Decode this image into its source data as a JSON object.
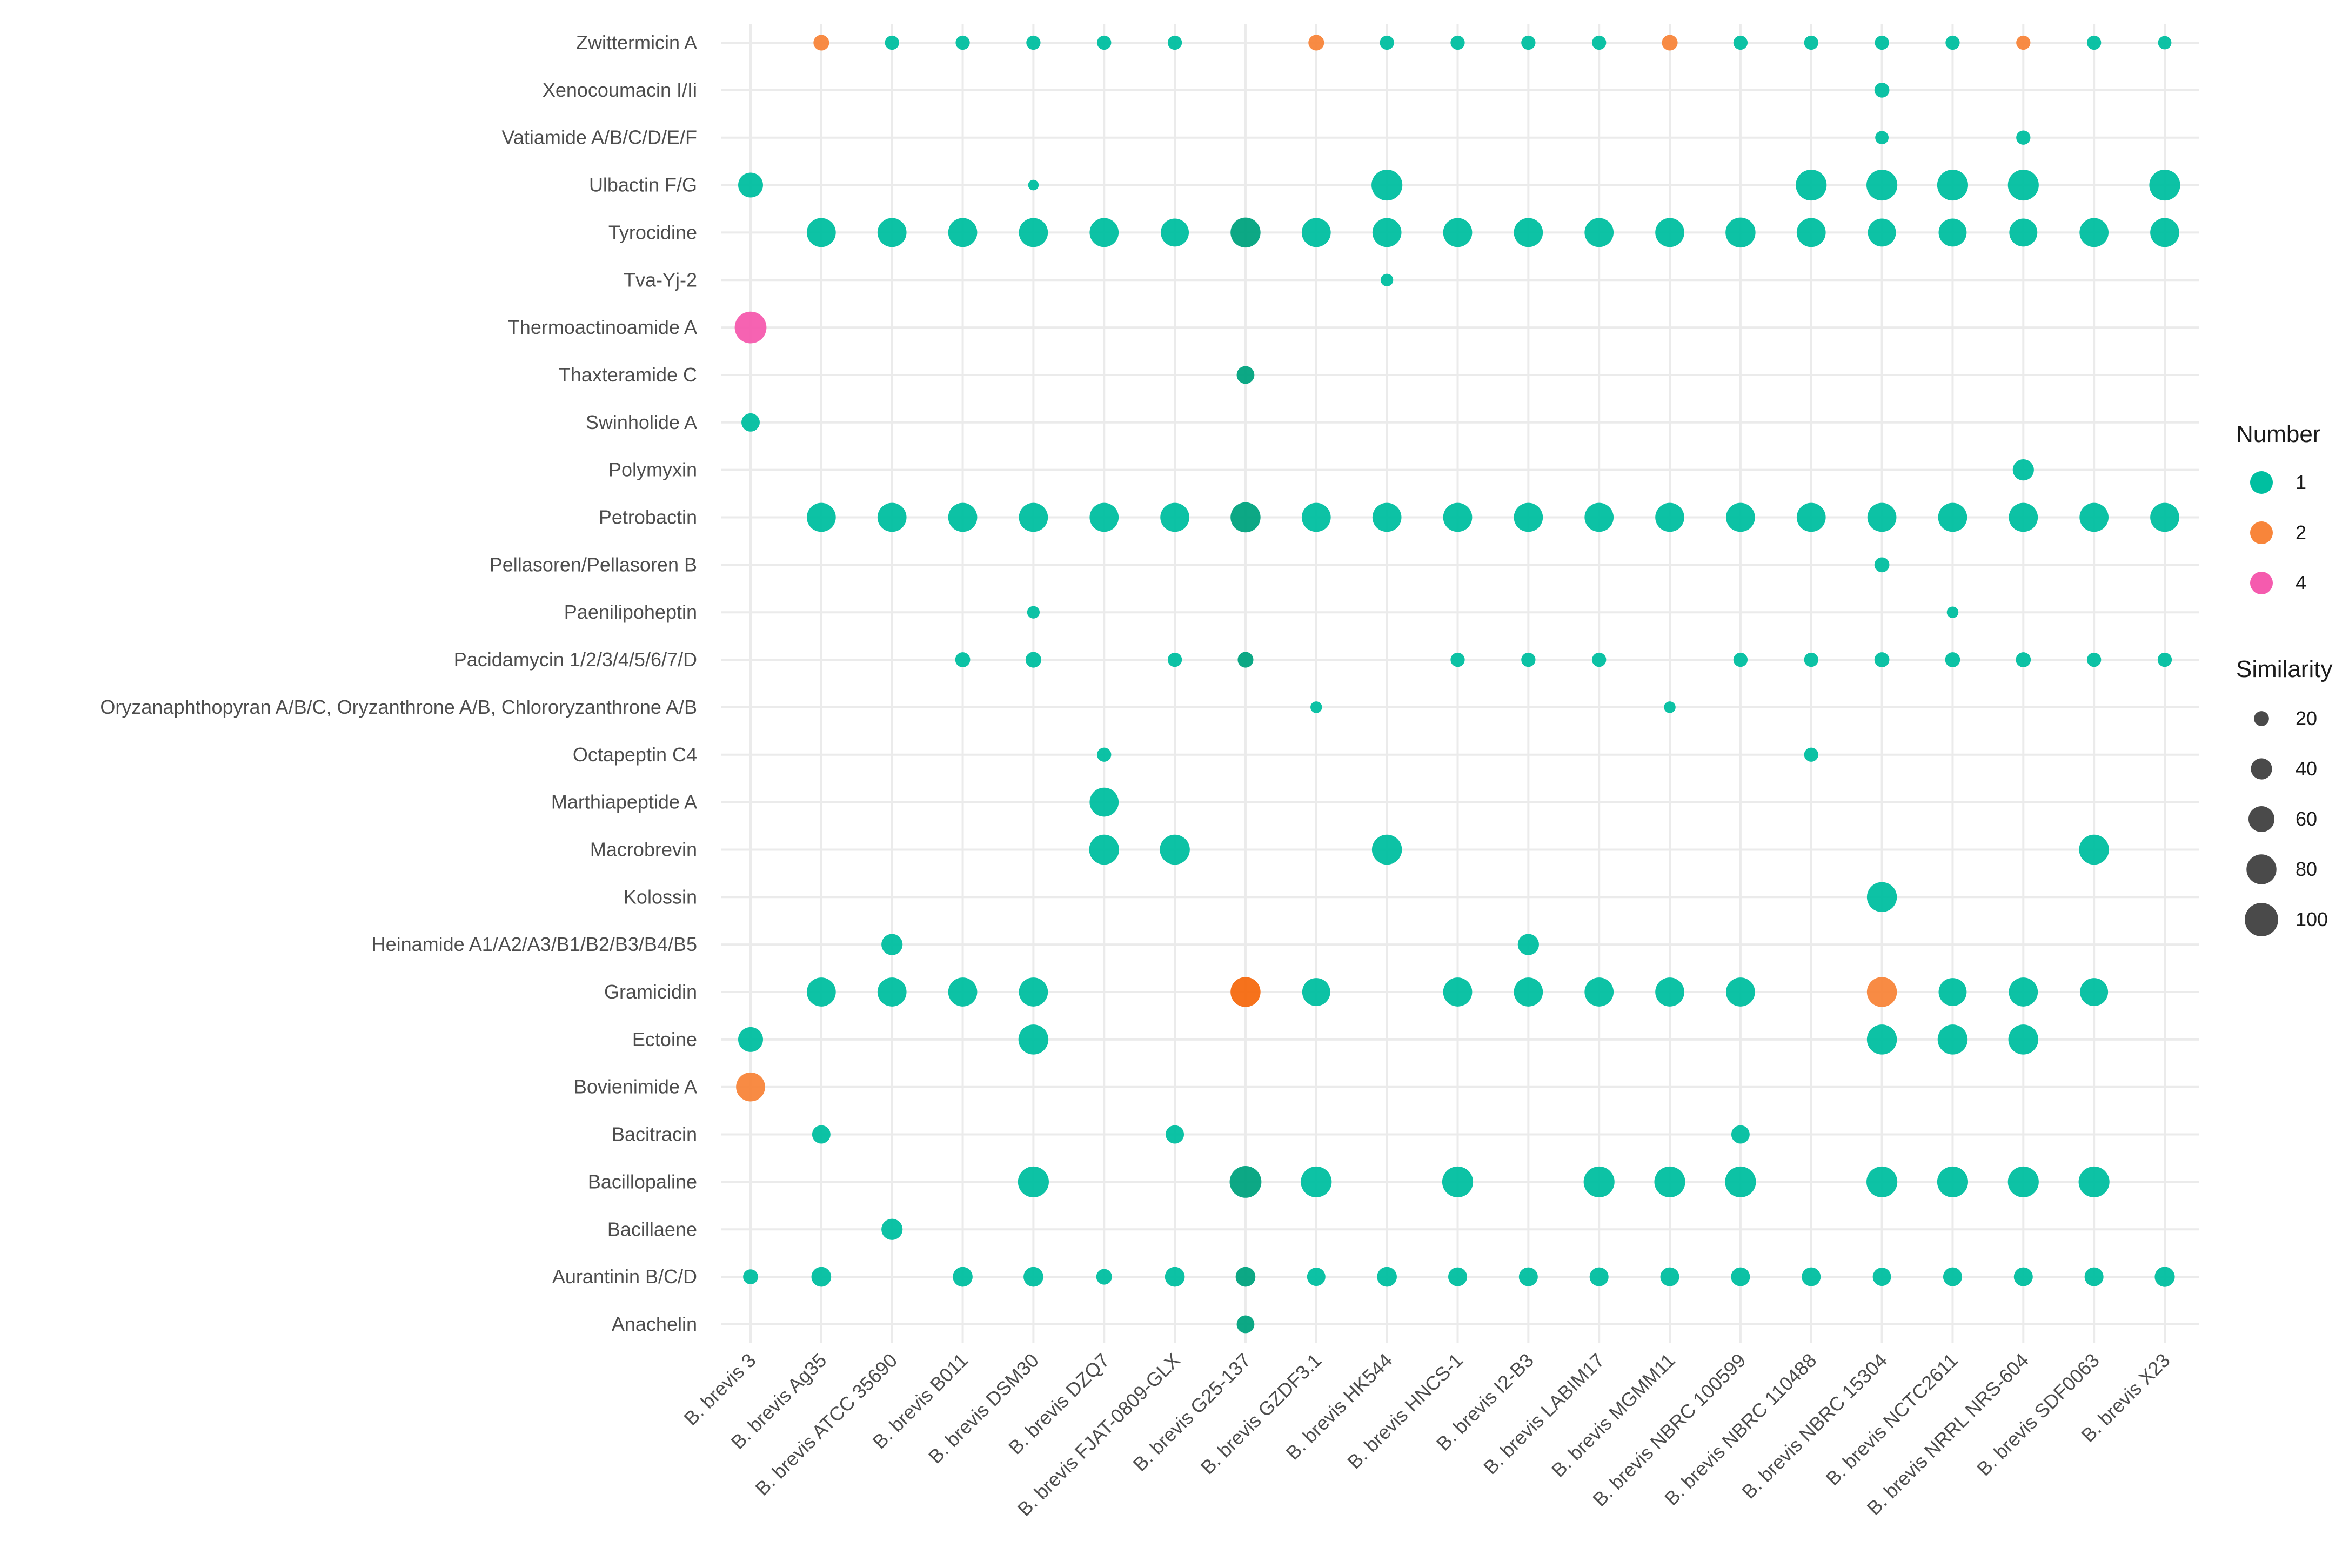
{
  "chart_data": {
    "type": "scatter",
    "title": "",
    "xlabel": "",
    "ylabel": "",
    "grid": true,
    "legend_position": "right",
    "strains": [
      "B. brevis 3",
      "B. brevis Ag35",
      "B. brevis ATCC 35690",
      "B. brevis B011",
      "B. brevis DSM30",
      "B. brevis DZQ7",
      "B. brevis FJAT-0809-GLX",
      "B. brevis G25-137",
      "B. brevis GZDF3.1",
      "B. brevis HK544",
      "B. brevis HNCS-1",
      "B. brevis I2-B3",
      "B. brevis LABIM17",
      "B. brevis MGMM11",
      "B. brevis NBRC 100599",
      "B. brevis NBRC 110488",
      "B. brevis NBRC 15304",
      "B. brevis NCTC2611",
      "B. brevis NRRL NRS-604",
      "B. brevis SDF0063",
      "B. brevis X23"
    ],
    "compounds": [
      "Zwittermicin A",
      "Xenocoumacin I/Ii",
      "Vatiamide A/B/C/D/E/F",
      "Ulbactin F/G",
      "Tyrocidine",
      "Tva-Yj-2",
      "Thermoactinoamide A",
      "Thaxteramide C",
      "Swinholide A",
      "Polymyxin",
      "Petrobactin",
      "Pellasoren/Pellasoren B",
      "Paenilipoheptin",
      "Pacidamycin 1/2/3/4/5/6/7/D",
      "Oryzanaphthopyran A/B/C, Oryzanthrone A/B, Chlororyzanthrone A/B",
      "Octapeptin C4",
      "Marthiapeptide A",
      "Macrobrevin",
      "Kolossin",
      "Heinamide A1/A2/A3/B1/B2/B3/B4/B5",
      "Gramicidin",
      "Ectoine",
      "Bovienimide A",
      "Bacitracin",
      "Bacillopaline",
      "Bacillaene",
      "Aurantinin B/C/D",
      "Anachelin"
    ],
    "point_fields": [
      "strain",
      "compound",
      "number",
      "similarity"
    ],
    "points": [
      [
        "B. brevis Ag35",
        "Zwittermicin A",
        2,
        22
      ],
      [
        "B. brevis ATCC 35690",
        "Zwittermicin A",
        1,
        18
      ],
      [
        "B. brevis B011",
        "Zwittermicin A",
        1,
        18
      ],
      [
        "B. brevis DSM30",
        "Zwittermicin A",
        1,
        18
      ],
      [
        "B. brevis DZQ7",
        "Zwittermicin A",
        1,
        18
      ],
      [
        "B. brevis FJAT-0809-GLX",
        "Zwittermicin A",
        1,
        18
      ],
      [
        "B. brevis GZDF3.1",
        "Zwittermicin A",
        2,
        22
      ],
      [
        "B. brevis HK544",
        "Zwittermicin A",
        1,
        18
      ],
      [
        "B. brevis HNCS-1",
        "Zwittermicin A",
        1,
        18
      ],
      [
        "B. brevis I2-B3",
        "Zwittermicin A",
        1,
        18
      ],
      [
        "B. brevis LABIM17",
        "Zwittermicin A",
        1,
        18
      ],
      [
        "B. brevis MGMM11",
        "Zwittermicin A",
        2,
        22
      ],
      [
        "B. brevis NBRC 100599",
        "Zwittermicin A",
        1,
        18
      ],
      [
        "B. brevis NBRC 110488",
        "Zwittermicin A",
        1,
        18
      ],
      [
        "B. brevis NBRC 15304",
        "Zwittermicin A",
        1,
        18
      ],
      [
        "B. brevis NCTC2611",
        "Zwittermicin A",
        1,
        18
      ],
      [
        "B. brevis NRRL NRS-604",
        "Zwittermicin A",
        2,
        18
      ],
      [
        "B. brevis SDF0063",
        "Zwittermicin A",
        1,
        18
      ],
      [
        "B. brevis X23",
        "Zwittermicin A",
        1,
        16
      ],
      [
        "B. brevis NBRC 15304",
        "Xenocoumacin I/Ii",
        1,
        20
      ],
      [
        "B. brevis NBRC 15304",
        "Vatiamide A/B/C/D/E/F",
        1,
        16
      ],
      [
        "B. brevis NRRL NRS-604",
        "Vatiamide A/B/C/D/E/F",
        1,
        18
      ],
      [
        "B. brevis 3",
        "Ulbactin F/G",
        1,
        55
      ],
      [
        "B. brevis DSM30",
        "Ulbactin F/G",
        1,
        10
      ],
      [
        "B. brevis HK544",
        "Ulbactin F/G",
        1,
        85
      ],
      [
        "B. brevis NBRC 110488",
        "Ulbactin F/G",
        1,
        85
      ],
      [
        "B. brevis NBRC 15304",
        "Ulbactin F/G",
        1,
        85
      ],
      [
        "B. brevis NCTC2611",
        "Ulbactin F/G",
        1,
        85
      ],
      [
        "B. brevis NRRL NRS-604",
        "Ulbactin F/G",
        1,
        85
      ],
      [
        "B. brevis X23",
        "Ulbactin F/G",
        1,
        85
      ],
      [
        "B. brevis Ag35",
        "Tyrocidine",
        1,
        75
      ],
      [
        "B. brevis ATCC 35690",
        "Tyrocidine",
        1,
        75
      ],
      [
        "B. brevis B011",
        "Tyrocidine",
        1,
        75
      ],
      [
        "B. brevis DSM30",
        "Tyrocidine",
        1,
        75
      ],
      [
        "B. brevis DZQ7",
        "Tyrocidine",
        1,
        75
      ],
      [
        "B. brevis FJAT-0809-GLX",
        "Tyrocidine",
        1,
        70
      ],
      [
        "B. brevis G25-137",
        "Tyrocidine",
        1,
        80
      ],
      [
        "B. brevis GZDF3.1",
        "Tyrocidine",
        1,
        75
      ],
      [
        "B. brevis HK544",
        "Tyrocidine",
        1,
        75
      ],
      [
        "B. brevis HNCS-1",
        "Tyrocidine",
        1,
        75
      ],
      [
        "B. brevis I2-B3",
        "Tyrocidine",
        1,
        75
      ],
      [
        "B. brevis LABIM17",
        "Tyrocidine",
        1,
        75
      ],
      [
        "B. brevis MGMM11",
        "Tyrocidine",
        1,
        75
      ],
      [
        "B. brevis NBRC 100599",
        "Tyrocidine",
        1,
        80
      ],
      [
        "B. brevis NBRC 110488",
        "Tyrocidine",
        1,
        75
      ],
      [
        "B. brevis NBRC 15304",
        "Tyrocidine",
        1,
        70
      ],
      [
        "B. brevis NCTC2611",
        "Tyrocidine",
        1,
        70
      ],
      [
        "B. brevis NRRL NRS-604",
        "Tyrocidine",
        1,
        70
      ],
      [
        "B. brevis SDF0063",
        "Tyrocidine",
        1,
        75
      ],
      [
        "B. brevis X23",
        "Tyrocidine",
        1,
        75
      ],
      [
        "B. brevis HK544",
        "Tva-Yj-2",
        1,
        14
      ],
      [
        "B. brevis 3",
        "Thermoactinoamide A",
        4,
        90
      ],
      [
        "B. brevis G25-137",
        "Thaxteramide C",
        1,
        28
      ],
      [
        "B. brevis 3",
        "Swinholide A",
        1,
        30
      ],
      [
        "B. brevis NRRL NRS-604",
        "Polymyxin",
        1,
        40
      ],
      [
        "B. brevis Ag35",
        "Petrobactin",
        1,
        75
      ],
      [
        "B. brevis ATCC 35690",
        "Petrobactin",
        1,
        75
      ],
      [
        "B. brevis B011",
        "Petrobactin",
        1,
        75
      ],
      [
        "B. brevis DSM30",
        "Petrobactin",
        1,
        75
      ],
      [
        "B. brevis DZQ7",
        "Petrobactin",
        1,
        75
      ],
      [
        "B. brevis FJAT-0809-GLX",
        "Petrobactin",
        1,
        75
      ],
      [
        "B. brevis G25-137",
        "Petrobactin",
        1,
        80
      ],
      [
        "B. brevis GZDF3.1",
        "Petrobactin",
        1,
        75
      ],
      [
        "B. brevis HK544",
        "Petrobactin",
        1,
        75
      ],
      [
        "B. brevis HNCS-1",
        "Petrobactin",
        1,
        75
      ],
      [
        "B. brevis I2-B3",
        "Petrobactin",
        1,
        75
      ],
      [
        "B. brevis LABIM17",
        "Petrobactin",
        1,
        75
      ],
      [
        "B. brevis MGMM11",
        "Petrobactin",
        1,
        75
      ],
      [
        "B. brevis NBRC 100599",
        "Petrobactin",
        1,
        75
      ],
      [
        "B. brevis NBRC 110488",
        "Petrobactin",
        1,
        75
      ],
      [
        "B. brevis NBRC 15304",
        "Petrobactin",
        1,
        75
      ],
      [
        "B. brevis NCTC2611",
        "Petrobactin",
        1,
        75
      ],
      [
        "B. brevis NRRL NRS-604",
        "Petrobactin",
        1,
        75
      ],
      [
        "B. brevis SDF0063",
        "Petrobactin",
        1,
        75
      ],
      [
        "B. brevis X23",
        "Petrobactin",
        1,
        75
      ],
      [
        "B. brevis NBRC 15304",
        "Pellasoren/Pellasoren B",
        1,
        20
      ],
      [
        "B. brevis DSM30",
        "Paenilipoheptin",
        1,
        14
      ],
      [
        "B. brevis NCTC2611",
        "Paenilipoheptin",
        1,
        12
      ],
      [
        "B. brevis B011",
        "Pacidamycin 1/2/3/4/5/6/7/D",
        1,
        20
      ],
      [
        "B. brevis DSM30",
        "Pacidamycin 1/2/3/4/5/6/7/D",
        1,
        22
      ],
      [
        "B. brevis FJAT-0809-GLX",
        "Pacidamycin 1/2/3/4/5/6/7/D",
        1,
        18
      ],
      [
        "B. brevis G25-137",
        "Pacidamycin 1/2/3/4/5/6/7/D",
        1,
        22
      ],
      [
        "B. brevis HNCS-1",
        "Pacidamycin 1/2/3/4/5/6/7/D",
        1,
        18
      ],
      [
        "B. brevis I2-B3",
        "Pacidamycin 1/2/3/4/5/6/7/D",
        1,
        18
      ],
      [
        "B. brevis LABIM17",
        "Pacidamycin 1/2/3/4/5/6/7/D",
        1,
        18
      ],
      [
        "B. brevis NBRC 100599",
        "Pacidamycin 1/2/3/4/5/6/7/D",
        1,
        18
      ],
      [
        "B. brevis NBRC 110488",
        "Pacidamycin 1/2/3/4/5/6/7/D",
        1,
        18
      ],
      [
        "B. brevis NBRC 15304",
        "Pacidamycin 1/2/3/4/5/6/7/D",
        1,
        20
      ],
      [
        "B. brevis NCTC2611",
        "Pacidamycin 1/2/3/4/5/6/7/D",
        1,
        20
      ],
      [
        "B. brevis NRRL NRS-604",
        "Pacidamycin 1/2/3/4/5/6/7/D",
        1,
        20
      ],
      [
        "B. brevis SDF0063",
        "Pacidamycin 1/2/3/4/5/6/7/D",
        1,
        18
      ],
      [
        "B. brevis X23",
        "Pacidamycin 1/2/3/4/5/6/7/D",
        1,
        18
      ],
      [
        "B. brevis GZDF3.1",
        "Oryzanaphthopyran A/B/C, Oryzanthrone A/B, Chlororyzanthrone A/B",
        1,
        12
      ],
      [
        "B. brevis MGMM11",
        "Oryzanaphthopyran A/B/C, Oryzanthrone A/B, Chlororyzanthrone A/B",
        1,
        12
      ],
      [
        "B. brevis DZQ7",
        "Octapeptin C4",
        1,
        18
      ],
      [
        "B. brevis NBRC 110488",
        "Octapeptin C4",
        1,
        18
      ],
      [
        "B. brevis DZQ7",
        "Marthiapeptide A",
        1,
        75
      ],
      [
        "B. brevis DZQ7",
        "Macrobrevin",
        1,
        80
      ],
      [
        "B. brevis FJAT-0809-GLX",
        "Macrobrevin",
        1,
        80
      ],
      [
        "B. brevis HK544",
        "Macrobrevin",
        1,
        80
      ],
      [
        "B. brevis SDF0063",
        "Macrobrevin",
        1,
        80
      ],
      [
        "B. brevis NBRC 15304",
        "Kolossin",
        1,
        80
      ],
      [
        "B. brevis ATCC 35690",
        "Heinamide A1/A2/A3/B1/B2/B3/B4/B5",
        1,
        40
      ],
      [
        "B. brevis I2-B3",
        "Heinamide A1/A2/A3/B1/B2/B3/B4/B5",
        1,
        40
      ],
      [
        "B. brevis Ag35",
        "Gramicidin",
        1,
        75
      ],
      [
        "B. brevis ATCC 35690",
        "Gramicidin",
        1,
        75
      ],
      [
        "B. brevis B011",
        "Gramicidin",
        1,
        75
      ],
      [
        "B. brevis DSM30",
        "Gramicidin",
        1,
        75
      ],
      [
        "B. brevis G25-137",
        "Gramicidin",
        2,
        80
      ],
      [
        "B. brevis GZDF3.1",
        "Gramicidin",
        1,
        70
      ],
      [
        "B. brevis HNCS-1",
        "Gramicidin",
        1,
        75
      ],
      [
        "B. brevis I2-B3",
        "Gramicidin",
        1,
        75
      ],
      [
        "B. brevis LABIM17",
        "Gramicidin",
        1,
        75
      ],
      [
        "B. brevis MGMM11",
        "Gramicidin",
        1,
        75
      ],
      [
        "B. brevis NBRC 100599",
        "Gramicidin",
        1,
        75
      ],
      [
        "B. brevis NBRC 15304",
        "Gramicidin",
        2,
        80
      ],
      [
        "B. brevis NCTC2611",
        "Gramicidin",
        1,
        70
      ],
      [
        "B. brevis NRRL NRS-604",
        "Gramicidin",
        1,
        75
      ],
      [
        "B. brevis SDF0063",
        "Gramicidin",
        1,
        70
      ],
      [
        "B. brevis 3",
        "Ectoine",
        1,
        55
      ],
      [
        "B. brevis DSM30",
        "Ectoine",
        1,
        80
      ],
      [
        "B. brevis NBRC 15304",
        "Ectoine",
        1,
        80
      ],
      [
        "B. brevis NCTC2611",
        "Ectoine",
        1,
        80
      ],
      [
        "B. brevis NRRL NRS-604",
        "Ectoine",
        1,
        80
      ],
      [
        "B. brevis 3",
        "Bovienimide A",
        2,
        75
      ],
      [
        "B. brevis Ag35",
        "Bacitracin",
        1,
        30
      ],
      [
        "B. brevis FJAT-0809-GLX",
        "Bacitracin",
        1,
        30
      ],
      [
        "B. brevis NBRC 100599",
        "Bacitracin",
        1,
        30
      ],
      [
        "B. brevis DSM30",
        "Bacillopaline",
        1,
        85
      ],
      [
        "B. brevis G25-137",
        "Bacillopaline",
        1,
        90
      ],
      [
        "B. brevis GZDF3.1",
        "Bacillopaline",
        1,
        85
      ],
      [
        "B. brevis HNCS-1",
        "Bacillopaline",
        1,
        85
      ],
      [
        "B. brevis LABIM17",
        "Bacillopaline",
        1,
        85
      ],
      [
        "B. brevis MGMM11",
        "Bacillopaline",
        1,
        85
      ],
      [
        "B. brevis NBRC 100599",
        "Bacillopaline",
        1,
        85
      ],
      [
        "B. brevis NBRC 15304",
        "Bacillopaline",
        1,
        85
      ],
      [
        "B. brevis NCTC2611",
        "Bacillopaline",
        1,
        85
      ],
      [
        "B. brevis NRRL NRS-604",
        "Bacillopaline",
        1,
        85
      ],
      [
        "B. brevis SDF0063",
        "Bacillopaline",
        1,
        85
      ],
      [
        "B. brevis ATCC 35690",
        "Bacillaene",
        1,
        40
      ],
      [
        "B. brevis 3",
        "Aurantinin B/C/D",
        1,
        20
      ],
      [
        "B. brevis Ag35",
        "Aurantinin B/C/D",
        1,
        35
      ],
      [
        "B. brevis B011",
        "Aurantinin B/C/D",
        1,
        35
      ],
      [
        "B. brevis DSM30",
        "Aurantinin B/C/D",
        1,
        35
      ],
      [
        "B. brevis DZQ7",
        "Aurantinin B/C/D",
        1,
        22
      ],
      [
        "B. brevis FJAT-0809-GLX",
        "Aurantinin B/C/D",
        1,
        35
      ],
      [
        "B. brevis G25-137",
        "Aurantinin B/C/D",
        1,
        35
      ],
      [
        "B. brevis GZDF3.1",
        "Aurantinin B/C/D",
        1,
        30
      ],
      [
        "B. brevis HK544",
        "Aurantinin B/C/D",
        1,
        35
      ],
      [
        "B. brevis HNCS-1",
        "Aurantinin B/C/D",
        1,
        32
      ],
      [
        "B. brevis I2-B3",
        "Aurantinin B/C/D",
        1,
        32
      ],
      [
        "B. brevis LABIM17",
        "Aurantinin B/C/D",
        1,
        32
      ],
      [
        "B. brevis MGMM11",
        "Aurantinin B/C/D",
        1,
        32
      ],
      [
        "B. brevis NBRC 100599",
        "Aurantinin B/C/D",
        1,
        32
      ],
      [
        "B. brevis NBRC 110488",
        "Aurantinin B/C/D",
        1,
        32
      ],
      [
        "B. brevis NBRC 15304",
        "Aurantinin B/C/D",
        1,
        30
      ],
      [
        "B. brevis NCTC2611",
        "Aurantinin B/C/D",
        1,
        32
      ],
      [
        "B. brevis NRRL NRS-604",
        "Aurantinin B/C/D",
        1,
        32
      ],
      [
        "B. brevis SDF0063",
        "Aurantinin B/C/D",
        1,
        32
      ],
      [
        "B. brevis X23",
        "Aurantinin B/C/D",
        1,
        36
      ],
      [
        "B. brevis G25-137",
        "Anachelin",
        1,
        28
      ]
    ],
    "number_legend": {
      "title": "Number",
      "levels": [
        {
          "value": 1,
          "label": "1",
          "color": "#00BFA0"
        },
        {
          "value": 2,
          "label": "2",
          "color": "#F8853A"
        },
        {
          "value": 4,
          "label": "4",
          "color": "#F55BAE"
        }
      ]
    },
    "similarity_legend": {
      "title": "Similarity",
      "breaks": [
        20,
        40,
        60,
        80,
        100
      ],
      "labels": [
        "20",
        "40",
        "60",
        "80",
        "100"
      ],
      "color": "#4a4a4a"
    },
    "overlap_color_1": "#00A37E",
    "overlap_color_2": "#F56A10"
  }
}
